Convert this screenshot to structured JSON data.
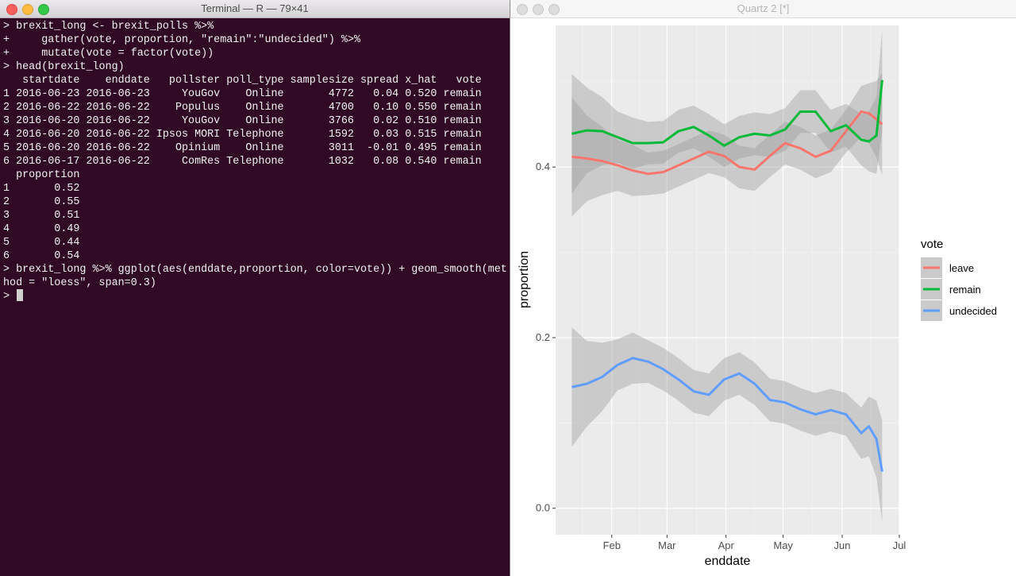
{
  "terminal": {
    "title": "Terminal — R — 79×41",
    "lines": [
      "> brexit_long <- brexit_polls %>%",
      "+     gather(vote, proportion, \"remain\":\"undecided\") %>%",
      "+     mutate(vote = factor(vote))",
      "> head(brexit_long)",
      "   startdate    enddate   pollster poll_type samplesize spread x_hat   vote",
      "1 2016-06-23 2016-06-23     YouGov    Online       4772   0.04 0.520 remain",
      "2 2016-06-22 2016-06-22    Populus    Online       4700   0.10 0.550 remain",
      "3 2016-06-20 2016-06-22     YouGov    Online       3766   0.02 0.510 remain",
      "4 2016-06-20 2016-06-22 Ipsos MORI Telephone       1592   0.03 0.515 remain",
      "5 2016-06-20 2016-06-22    Opinium    Online       3011  -0.01 0.495 remain",
      "6 2016-06-17 2016-06-22     ComRes Telephone       1032   0.08 0.540 remain",
      "  proportion",
      "1       0.52",
      "2       0.55",
      "3       0.51",
      "4       0.49",
      "5       0.44",
      "6       0.54",
      "> brexit_long %>% ggplot(aes(enddate,proportion, color=vote)) + geom_smooth(met",
      "hod = \"loess\", span=0.3)",
      ">"
    ]
  },
  "quartz": {
    "title": "Quartz 2 [*]"
  },
  "chart_data": {
    "type": "line",
    "x_label": "enddate",
    "y_label": "proportion",
    "legend_title": "vote",
    "legend": "right",
    "grid": true,
    "band_color": "#999999",
    "x": [
      10,
      18,
      26,
      34,
      42,
      50,
      58,
      66,
      74,
      82,
      90,
      98,
      106,
      114,
      122,
      130,
      138,
      146,
      154,
      162,
      166,
      170,
      173
    ],
    "xlim": [
      1.5,
      182
    ],
    "xticks": [
      {
        "value": 31,
        "label": "Feb"
      },
      {
        "value": 60,
        "label": "Mar"
      },
      {
        "value": 91,
        "label": "Apr"
      },
      {
        "value": 121,
        "label": "May"
      },
      {
        "value": 152,
        "label": "Jun"
      },
      {
        "value": 182,
        "label": "Jul"
      }
    ],
    "x_minor_ticks": [
      15.5,
      45.5,
      75.5,
      106,
      136.5,
      167
    ],
    "ylim": [
      -0.031,
      0.566
    ],
    "yticks": [
      {
        "value": 0,
        "label": "0.0"
      },
      0.2,
      0.4
    ],
    "y_minor_ticks": [
      0.1,
      0.3,
      0.5
    ],
    "series": [
      {
        "name": "leave",
        "color": "#F8766D",
        "values": [
          0.412,
          0.41,
          0.407,
          0.402,
          0.396,
          0.392,
          0.394,
          0.402,
          0.41,
          0.418,
          0.413,
          0.4,
          0.397,
          0.413,
          0.428,
          0.422,
          0.412,
          0.419,
          0.442,
          0.465,
          0.463,
          0.456,
          0.45
        ],
        "lower": [
          0.342,
          0.36,
          0.367,
          0.372,
          0.366,
          0.367,
          0.369,
          0.377,
          0.385,
          0.393,
          0.388,
          0.375,
          0.372,
          0.388,
          0.403,
          0.397,
          0.387,
          0.394,
          0.417,
          0.435,
          0.428,
          0.411,
          0.39
        ],
        "upper": [
          0.482,
          0.46,
          0.447,
          0.432,
          0.426,
          0.417,
          0.419,
          0.427,
          0.435,
          0.443,
          0.438,
          0.425,
          0.422,
          0.438,
          0.453,
          0.447,
          0.437,
          0.444,
          0.467,
          0.495,
          0.498,
          0.501,
          0.51
        ]
      },
      {
        "name": "remain",
        "color": "#00BA38",
        "values": [
          0.439,
          0.443,
          0.442,
          0.435,
          0.428,
          0.428,
          0.429,
          0.442,
          0.447,
          0.437,
          0.425,
          0.435,
          0.439,
          0.437,
          0.444,
          0.465,
          0.465,
          0.442,
          0.449,
          0.432,
          0.43,
          0.437,
          0.502
        ],
        "lower": [
          0.369,
          0.393,
          0.402,
          0.405,
          0.398,
          0.403,
          0.404,
          0.417,
          0.422,
          0.412,
          0.4,
          0.41,
          0.414,
          0.412,
          0.419,
          0.44,
          0.44,
          0.417,
          0.424,
          0.402,
          0.395,
          0.392,
          0.442
        ],
        "upper": [
          0.509,
          0.493,
          0.482,
          0.465,
          0.458,
          0.453,
          0.454,
          0.467,
          0.472,
          0.462,
          0.45,
          0.46,
          0.464,
          0.462,
          0.469,
          0.49,
          0.49,
          0.467,
          0.474,
          0.462,
          0.465,
          0.482,
          0.562
        ]
      },
      {
        "name": "undecided",
        "color": "#619CFF",
        "values": [
          0.142,
          0.146,
          0.154,
          0.168,
          0.176,
          0.172,
          0.163,
          0.151,
          0.137,
          0.133,
          0.151,
          0.158,
          0.146,
          0.127,
          0.124,
          0.116,
          0.11,
          0.115,
          0.11,
          0.088,
          0.096,
          0.081,
          0.043
        ],
        "lower": [
          0.072,
          0.096,
          0.114,
          0.138,
          0.146,
          0.147,
          0.138,
          0.126,
          0.112,
          0.108,
          0.126,
          0.133,
          0.121,
          0.102,
          0.099,
          0.091,
          0.085,
          0.09,
          0.085,
          0.058,
          0.061,
          0.036,
          -0.017
        ],
        "upper": [
          0.212,
          0.196,
          0.194,
          0.198,
          0.206,
          0.197,
          0.188,
          0.176,
          0.162,
          0.158,
          0.176,
          0.183,
          0.171,
          0.152,
          0.149,
          0.141,
          0.135,
          0.14,
          0.135,
          0.118,
          0.131,
          0.126,
          0.103
        ]
      }
    ]
  }
}
